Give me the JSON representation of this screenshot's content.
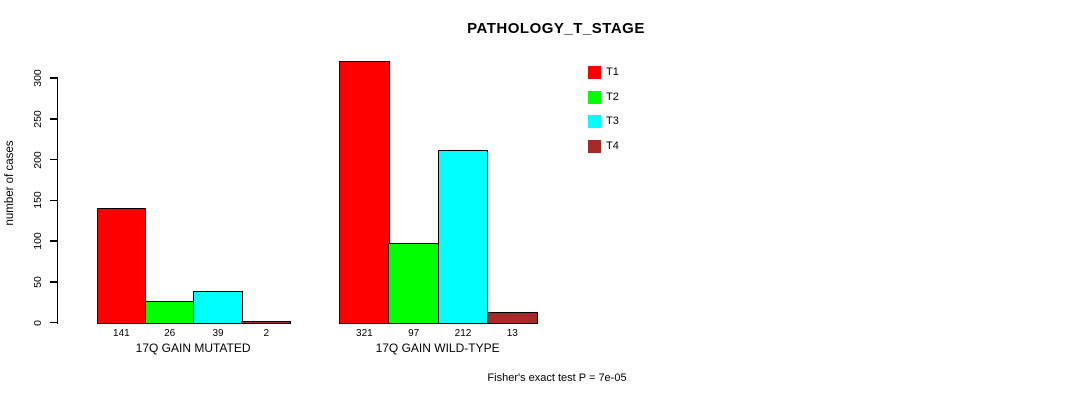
{
  "chart_data": {
    "type": "bar",
    "title": "PATHOLOGY_T_STAGE",
    "ylabel": "number of cases",
    "xlabel": "",
    "categories": [
      "17Q GAIN MUTATED",
      "17Q GAIN WILD-TYPE"
    ],
    "series": [
      {
        "name": "T1",
        "color": "#FF0000",
        "values": [
          141,
          321
        ]
      },
      {
        "name": "T2",
        "color": "#00FF00",
        "values": [
          26,
          97
        ]
      },
      {
        "name": "T3",
        "color": "#00FFFF",
        "values": [
          39,
          212
        ]
      },
      {
        "name": "T4",
        "color": "#A52A2A",
        "values": [
          2,
          13
        ]
      }
    ],
    "bar_value_labels": [
      [
        "141",
        "26",
        "39",
        "2"
      ],
      [
        "321",
        "97",
        "212",
        "13"
      ]
    ],
    "y_ticks": [
      0,
      50,
      100,
      150,
      200,
      250,
      300
    ],
    "ylim": [
      0,
      300
    ],
    "grid": false,
    "legend": {
      "position": "top-right",
      "entries": [
        "T1",
        "T2",
        "T3",
        "T4"
      ]
    },
    "annotation": "Fisher's exact test P = 7e-05"
  }
}
